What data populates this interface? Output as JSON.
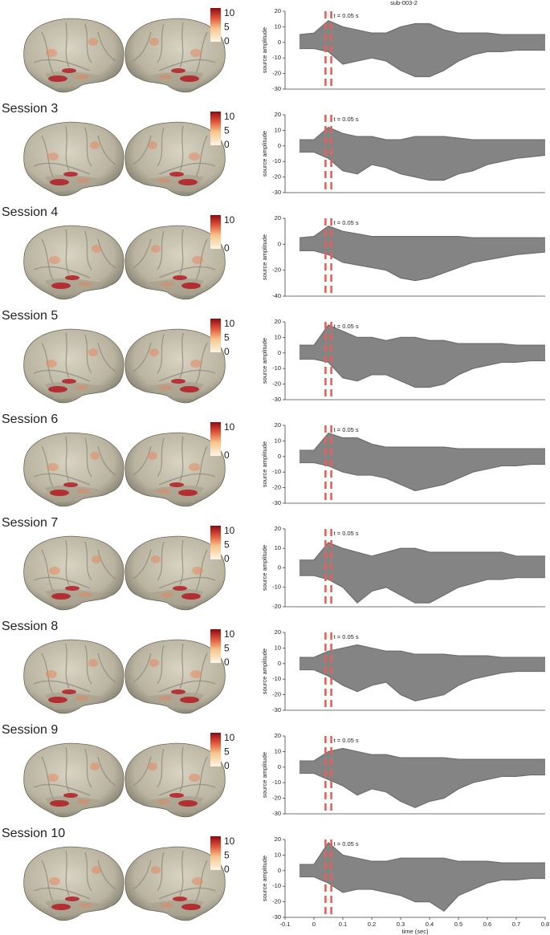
{
  "chart_data": [
    {
      "type": "area",
      "title": "sub-003-2",
      "ylabel": "source amplitude",
      "annotation": "t = 0.05 s",
      "vlines": [
        0.04,
        0.06
      ],
      "color": "#6e6e6e",
      "x": [
        -0.05,
        0,
        0.05,
        0.1,
        0.15,
        0.2,
        0.25,
        0.3,
        0.35,
        0.4,
        0.45,
        0.5,
        0.55,
        0.6,
        0.65,
        0.7,
        0.75,
        0.8
      ],
      "series": [
        {
          "values": [
            5,
            6,
            14,
            10,
            8,
            6,
            6,
            10,
            12,
            12,
            8,
            6,
            6,
            6,
            5,
            5,
            5,
            5
          ]
        },
        {
          "values": [
            -4,
            -4,
            -6,
            -14,
            -12,
            -10,
            -12,
            -18,
            -22,
            -22,
            -18,
            -12,
            -8,
            -6,
            -6,
            -5,
            -5,
            -5
          ]
        }
      ],
      "xlim": [
        -0.1,
        0.8
      ],
      "ylim": [
        -30,
        20
      ],
      "yticks": [
        20,
        10,
        0,
        -10,
        -20,
        -30
      ],
      "colorbar": {
        "lim": [
          0,
          12
        ],
        "ticks": [
          10,
          5,
          0
        ]
      }
    },
    {
      "type": "area",
      "session": "Session 3",
      "ylabel": "source amplitude",
      "annotation": "t = 0.05 s",
      "vlines": [
        0.04,
        0.06
      ],
      "color": "#6e6e6e",
      "x": [
        -0.05,
        0,
        0.05,
        0.1,
        0.15,
        0.2,
        0.25,
        0.3,
        0.35,
        0.4,
        0.45,
        0.5,
        0.55,
        0.6,
        0.65,
        0.7,
        0.75,
        0.8
      ],
      "series": [
        {
          "values": [
            4,
            4,
            12,
            8,
            6,
            6,
            4,
            4,
            6,
            6,
            6,
            5,
            4,
            4,
            4,
            4,
            4,
            4
          ]
        },
        {
          "values": [
            -4,
            -4,
            -8,
            -16,
            -18,
            -12,
            -14,
            -18,
            -20,
            -22,
            -22,
            -18,
            -16,
            -12,
            -10,
            -8,
            -7,
            -6
          ]
        }
      ],
      "xlim": [
        -0.1,
        0.8
      ],
      "ylim": [
        -30,
        20
      ],
      "yticks": [
        20,
        10,
        0,
        -10,
        -20,
        -30
      ],
      "colorbar": {
        "lim": [
          0,
          12
        ],
        "ticks": [
          10,
          5,
          0
        ]
      }
    },
    {
      "type": "area",
      "session": "Session 4",
      "ylabel": "source amplitude",
      "annotation": "t = 0.05 s",
      "vlines": [
        0.04,
        0.06
      ],
      "color": "#6e6e6e",
      "x": [
        -0.05,
        0,
        0.05,
        0.1,
        0.15,
        0.2,
        0.25,
        0.3,
        0.35,
        0.4,
        0.45,
        0.5,
        0.55,
        0.6,
        0.65,
        0.7,
        0.75,
        0.8
      ],
      "series": [
        {
          "values": [
            5,
            6,
            14,
            10,
            8,
            6,
            6,
            6,
            6,
            6,
            6,
            6,
            5,
            5,
            5,
            5,
            5,
            5
          ]
        },
        {
          "values": [
            -5,
            -5,
            -8,
            -14,
            -16,
            -18,
            -20,
            -26,
            -28,
            -26,
            -22,
            -18,
            -14,
            -12,
            -10,
            -8,
            -7,
            -6
          ]
        }
      ],
      "xlim": [
        -0.1,
        0.8
      ],
      "ylim": [
        -40,
        20
      ],
      "yticks": [
        20,
        0,
        -20,
        -40
      ],
      "colorbar": {
        "lim": [
          0,
          12
        ],
        "ticks": [
          10,
          0
        ]
      }
    },
    {
      "type": "area",
      "session": "Session 5",
      "ylabel": "source amplitude",
      "annotation": "t = 0.05 s",
      "vlines": [
        0.04,
        0.06
      ],
      "color": "#6e6e6e",
      "x": [
        -0.05,
        0,
        0.05,
        0.1,
        0.15,
        0.2,
        0.25,
        0.3,
        0.35,
        0.4,
        0.45,
        0.5,
        0.55,
        0.6,
        0.65,
        0.7,
        0.75,
        0.8
      ],
      "series": [
        {
          "values": [
            5,
            5,
            18,
            14,
            10,
            10,
            8,
            10,
            10,
            8,
            8,
            6,
            6,
            6,
            6,
            5,
            5,
            5
          ]
        },
        {
          "values": [
            -4,
            -4,
            -6,
            -16,
            -18,
            -14,
            -14,
            -18,
            -22,
            -22,
            -20,
            -14,
            -10,
            -8,
            -6,
            -6,
            -5,
            -5
          ]
        }
      ],
      "xlim": [
        -0.1,
        0.8
      ],
      "ylim": [
        -30,
        20
      ],
      "yticks": [
        20,
        10,
        0,
        -10,
        -20,
        -30
      ],
      "colorbar": {
        "lim": [
          0,
          12
        ],
        "ticks": [
          10,
          5,
          0
        ]
      }
    },
    {
      "type": "area",
      "session": "Session 6",
      "ylabel": "source amplitude",
      "annotation": "t = 0.05 s",
      "vlines": [
        0.04,
        0.06
      ],
      "color": "#6e6e6e",
      "x": [
        -0.05,
        0,
        0.05,
        0.1,
        0.15,
        0.2,
        0.25,
        0.3,
        0.35,
        0.4,
        0.45,
        0.5,
        0.55,
        0.6,
        0.65,
        0.7,
        0.75,
        0.8
      ],
      "series": [
        {
          "values": [
            4,
            4,
            15,
            12,
            12,
            8,
            6,
            6,
            6,
            6,
            6,
            5,
            5,
            5,
            5,
            5,
            5,
            5
          ]
        },
        {
          "values": [
            -4,
            -4,
            -6,
            -10,
            -12,
            -12,
            -14,
            -18,
            -22,
            -20,
            -18,
            -14,
            -10,
            -8,
            -6,
            -6,
            -5,
            -5
          ]
        }
      ],
      "xlim": [
        -0.1,
        0.8
      ],
      "ylim": [
        -30,
        20
      ],
      "yticks": [
        20,
        10,
        0,
        -10,
        -20,
        -30
      ],
      "colorbar": {
        "lim": [
          0,
          12
        ],
        "ticks": [
          10,
          0
        ]
      }
    },
    {
      "type": "area",
      "session": "Session 7",
      "ylabel": "source amplitude",
      "annotation": "t = 0.05 s",
      "vlines": [
        0.04,
        0.06
      ],
      "color": "#6e6e6e",
      "x": [
        -0.05,
        0,
        0.05,
        0.1,
        0.15,
        0.2,
        0.25,
        0.3,
        0.35,
        0.4,
        0.45,
        0.5,
        0.55,
        0.6,
        0.65,
        0.7,
        0.75,
        0.8
      ],
      "series": [
        {
          "values": [
            4,
            4,
            13,
            10,
            8,
            6,
            8,
            10,
            10,
            8,
            8,
            8,
            8,
            8,
            8,
            6,
            6,
            6
          ]
        },
        {
          "values": [
            -4,
            -4,
            -6,
            -10,
            -18,
            -12,
            -10,
            -14,
            -18,
            -18,
            -14,
            -10,
            -8,
            -6,
            -6,
            -5,
            -5,
            -5
          ]
        }
      ],
      "xlim": [
        -0.1,
        0.8
      ],
      "ylim": [
        -20,
        20
      ],
      "yticks": [
        20,
        10,
        0,
        -10,
        -20
      ],
      "colorbar": {
        "lim": [
          0,
          12
        ],
        "ticks": [
          10,
          5,
          0
        ]
      }
    },
    {
      "type": "area",
      "session": "Session 8",
      "ylabel": "source amplitude",
      "annotation": "t = 0.05 s",
      "vlines": [
        0.04,
        0.06
      ],
      "color": "#6e6e6e",
      "x": [
        -0.05,
        0,
        0.05,
        0.1,
        0.15,
        0.2,
        0.25,
        0.3,
        0.35,
        0.4,
        0.45,
        0.5,
        0.55,
        0.6,
        0.65,
        0.7,
        0.75,
        0.8
      ],
      "series": [
        {
          "values": [
            4,
            4,
            8,
            10,
            12,
            10,
            8,
            8,
            6,
            6,
            6,
            5,
            5,
            5,
            4,
            4,
            4,
            4
          ]
        },
        {
          "values": [
            -4,
            -4,
            -8,
            -14,
            -18,
            -14,
            -12,
            -20,
            -24,
            -22,
            -20,
            -14,
            -10,
            -8,
            -6,
            -5,
            -5,
            -5
          ]
        }
      ],
      "xlim": [
        -0.1,
        0.8
      ],
      "ylim": [
        -30,
        20
      ],
      "yticks": [
        20,
        10,
        0,
        -10,
        -20,
        -30
      ],
      "colorbar": {
        "lim": [
          0,
          12
        ],
        "ticks": [
          10,
          5,
          0
        ]
      }
    },
    {
      "type": "area",
      "session": "Session 9",
      "ylabel": "source amplitude",
      "annotation": "t = 0.05 s",
      "vlines": [
        0.04,
        0.06
      ],
      "color": "#6e6e6e",
      "x": [
        -0.05,
        0,
        0.05,
        0.1,
        0.15,
        0.2,
        0.25,
        0.3,
        0.35,
        0.4,
        0.45,
        0.5,
        0.55,
        0.6,
        0.65,
        0.7,
        0.75,
        0.8
      ],
      "series": [
        {
          "values": [
            4,
            4,
            10,
            12,
            10,
            8,
            8,
            6,
            6,
            6,
            6,
            5,
            5,
            5,
            5,
            5,
            5,
            5
          ]
        },
        {
          "values": [
            -4,
            -4,
            -8,
            -12,
            -18,
            -14,
            -16,
            -22,
            -26,
            -22,
            -20,
            -14,
            -10,
            -8,
            -6,
            -6,
            -5,
            -5
          ]
        }
      ],
      "xlim": [
        -0.1,
        0.8
      ],
      "ylim": [
        -30,
        20
      ],
      "yticks": [
        20,
        10,
        0,
        -10,
        -20,
        -30
      ],
      "colorbar": {
        "lim": [
          0,
          12
        ],
        "ticks": [
          10,
          5,
          0
        ]
      }
    },
    {
      "type": "area",
      "session": "Session 10",
      "ylabel": "source amplitude",
      "xlabel": "time (sec)",
      "annotation": "t = 0.05 s",
      "vlines": [
        0.04,
        0.06
      ],
      "color": "#6e6e6e",
      "x": [
        -0.05,
        0,
        0.05,
        0.1,
        0.15,
        0.2,
        0.25,
        0.3,
        0.35,
        0.4,
        0.45,
        0.5,
        0.55,
        0.6,
        0.65,
        0.7,
        0.75,
        0.8
      ],
      "series": [
        {
          "values": [
            4,
            4,
            18,
            10,
            8,
            6,
            6,
            8,
            8,
            8,
            8,
            6,
            6,
            6,
            5,
            5,
            5,
            5
          ]
        },
        {
          "values": [
            -4,
            -4,
            -8,
            -14,
            -12,
            -12,
            -14,
            -16,
            -20,
            -20,
            -26,
            -16,
            -12,
            -8,
            -6,
            -6,
            -5,
            -5
          ]
        }
      ],
      "xlim": [
        -0.1,
        0.8
      ],
      "ylim": [
        -30,
        20
      ],
      "yticks": [
        20,
        10,
        0,
        -10,
        -20,
        -30
      ],
      "xticks": [
        -0.1,
        0,
        0.1,
        0.2,
        0.3,
        0.4,
        0.5,
        0.6,
        0.7,
        0.8
      ],
      "colorbar": {
        "lim": [
          0,
          12
        ],
        "ticks": [
          10,
          5,
          0
        ]
      }
    }
  ]
}
